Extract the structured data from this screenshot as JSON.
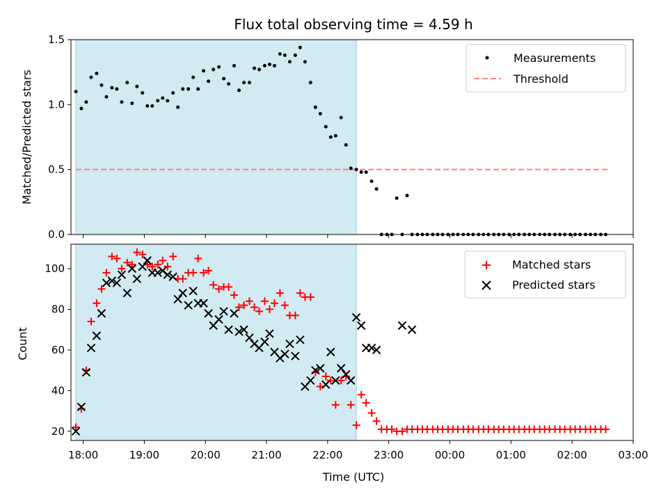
{
  "chart_data": [
    {
      "type": "scatter",
      "title": "Flux total observing time = 4.59 h",
      "xlabel": "",
      "ylabel": "Matched/Predicted stars",
      "ylim": [
        0,
        1.5
      ],
      "yticks": [
        "0.0",
        "0.5",
        "1.0",
        "1.5"
      ],
      "xlim": [
        17.8,
        27.0
      ],
      "shaded_region": {
        "x_start": 17.88,
        "x_end": 22.47,
        "color": "#add8e6"
      },
      "legend": "top-right",
      "threshold": {
        "name": "Threshold",
        "value": 0.5,
        "x_start": 17.88,
        "x_end": 26.6,
        "color": "#ff7f7f"
      },
      "series": [
        {
          "name": "Measurements",
          "color": "#000000",
          "x": [
            17.88,
            17.97,
            18.05,
            18.13,
            18.22,
            18.3,
            18.38,
            18.47,
            18.55,
            18.63,
            18.72,
            18.8,
            18.88,
            18.97,
            19.05,
            19.13,
            19.22,
            19.3,
            19.38,
            19.47,
            19.55,
            19.63,
            19.72,
            19.8,
            19.88,
            19.97,
            20.05,
            20.13,
            20.22,
            20.3,
            20.38,
            20.47,
            20.55,
            20.63,
            20.72,
            20.8,
            20.88,
            20.97,
            21.05,
            21.13,
            21.22,
            21.3,
            21.38,
            21.47,
            21.55,
            21.63,
            21.72,
            21.8,
            21.88,
            21.97,
            22.05,
            22.13,
            22.22,
            22.3,
            22.38,
            22.47,
            22.55,
            22.63,
            22.72,
            22.8,
            22.88,
            22.97,
            23.05,
            23.13,
            23.22,
            23.3,
            23.38,
            23.47,
            23.55,
            23.63,
            23.72,
            23.8,
            23.88,
            23.97,
            24.05,
            24.13,
            24.22,
            24.3,
            24.38,
            24.47,
            24.55,
            24.63,
            24.72,
            24.8,
            24.88,
            24.97,
            25.05,
            25.13,
            25.22,
            25.3,
            25.38,
            25.47,
            25.55,
            25.63,
            25.72,
            25.8,
            25.88,
            25.97,
            26.05,
            26.13,
            26.22,
            26.3,
            26.38,
            26.47,
            26.55
          ],
          "y": [
            1.1,
            0.97,
            1.02,
            1.21,
            1.24,
            1.15,
            1.06,
            1.13,
            1.12,
            1.02,
            1.17,
            1.01,
            1.14,
            1.09,
            0.99,
            0.99,
            1.03,
            1.05,
            1.03,
            1.09,
            0.98,
            1.12,
            1.12,
            1.21,
            1.12,
            1.26,
            1.18,
            1.27,
            1.29,
            1.2,
            1.16,
            1.3,
            1.11,
            1.17,
            1.17,
            1.28,
            1.27,
            1.3,
            1.31,
            1.3,
            1.39,
            1.38,
            1.33,
            1.38,
            1.44,
            1.33,
            1.17,
            0.98,
            0.93,
            0.83,
            0.75,
            0.76,
            0.9,
            0.69,
            0.51,
            0.5,
            0.48,
            0.48,
            0.41,
            0.35,
            0.0,
            0.0,
            0.0,
            0.28,
            0.0,
            0.3,
            0.0,
            0.0,
            0.0,
            0.0,
            0.0,
            0.0,
            0.0,
            0.0,
            0.0,
            0.0,
            0.0,
            0.0,
            0.0,
            0.0,
            0.0,
            0.0,
            0.0,
            0.0,
            0.0,
            0.0,
            0.0,
            0.0,
            0.0,
            0.0,
            0.0,
            0.0,
            0.0,
            0.0,
            0.0,
            0.0,
            0.0,
            0.0,
            0.0,
            0.0,
            0.0,
            0.0,
            0.0,
            0.0,
            0.0
          ]
        }
      ]
    },
    {
      "type": "scatter",
      "title": "",
      "xlabel": "Time (UTC)",
      "ylabel": "Count",
      "ylim": [
        15.5,
        112
      ],
      "yticks": [
        "20",
        "40",
        "60",
        "80",
        "100"
      ],
      "xlim": [
        17.8,
        27.0
      ],
      "xticks": [
        {
          "value": 18,
          "label": "18:00"
        },
        {
          "value": 19,
          "label": "19:00"
        },
        {
          "value": 20,
          "label": "20:00"
        },
        {
          "value": 21,
          "label": "21:00"
        },
        {
          "value": 22,
          "label": "22:00"
        },
        {
          "value": 23,
          "label": "23:00"
        },
        {
          "value": 24,
          "label": "00:00"
        },
        {
          "value": 25,
          "label": "01:00"
        },
        {
          "value": 26,
          "label": "02:00"
        },
        {
          "value": 27,
          "label": "03:00"
        }
      ],
      "shaded_region": {
        "x_start": 17.88,
        "x_end": 22.47,
        "color": "#add8e6"
      },
      "legend": "top-right",
      "series": [
        {
          "name": "Matched stars",
          "color": "#ff0000",
          "marker": "plus",
          "x": [
            17.88,
            17.97,
            18.05,
            18.13,
            18.22,
            18.3,
            18.38,
            18.47,
            18.55,
            18.63,
            18.72,
            18.8,
            18.88,
            18.97,
            19.05,
            19.13,
            19.22,
            19.3,
            19.38,
            19.47,
            19.55,
            19.63,
            19.72,
            19.8,
            19.88,
            19.97,
            20.05,
            20.13,
            20.22,
            20.3,
            20.38,
            20.47,
            20.55,
            20.63,
            20.72,
            20.8,
            20.88,
            20.97,
            21.05,
            21.13,
            21.22,
            21.3,
            21.38,
            21.47,
            21.55,
            21.63,
            21.72,
            21.8,
            21.88,
            21.97,
            22.05,
            22.13,
            22.22,
            22.3,
            22.38,
            22.47,
            22.55,
            22.63,
            22.72,
            22.8,
            22.88,
            22.97,
            23.05,
            23.13,
            23.22,
            23.3,
            23.38,
            23.47,
            23.55,
            23.63,
            23.72,
            23.8,
            23.88,
            23.97,
            24.05,
            24.13,
            24.22,
            24.3,
            24.38,
            24.47,
            24.55,
            24.63,
            24.72,
            24.8,
            24.88,
            24.97,
            25.05,
            25.13,
            25.22,
            25.3,
            25.38,
            25.47,
            25.55,
            25.63,
            25.72,
            25.8,
            25.88,
            25.97,
            26.05,
            26.13,
            26.22,
            26.3,
            26.38,
            26.47,
            26.55
          ],
          "y": [
            22,
            31,
            50,
            74,
            83,
            90,
            98,
            106,
            105,
            100,
            103,
            102,
            108,
            107,
            102,
            101,
            102,
            104,
            101,
            106,
            95,
            95,
            98,
            98,
            105,
            98,
            99,
            92,
            90,
            91,
            91,
            87,
            81,
            82,
            84,
            81,
            79,
            84,
            80,
            83,
            88,
            82,
            77,
            77,
            88,
            86,
            86,
            49,
            42,
            47,
            45,
            33,
            45,
            47,
            33,
            23,
            38,
            34,
            29,
            25,
            21,
            21,
            21,
            20,
            20,
            21,
            21,
            21,
            21,
            21,
            21,
            21,
            21,
            21,
            21,
            21,
            21,
            21,
            21,
            21,
            21,
            21,
            21,
            21,
            21,
            21,
            21,
            21,
            21,
            21,
            21,
            21,
            21,
            21,
            21,
            21,
            21,
            21,
            21,
            21,
            21,
            21,
            21,
            21,
            21
          ]
        },
        {
          "name": "Predicted stars",
          "color": "#000000",
          "marker": "x",
          "x": [
            17.88,
            17.97,
            18.05,
            18.13,
            18.22,
            18.3,
            18.38,
            18.47,
            18.55,
            18.63,
            18.72,
            18.8,
            18.88,
            18.97,
            19.05,
            19.13,
            19.22,
            19.3,
            19.38,
            19.47,
            19.55,
            19.63,
            19.72,
            19.8,
            19.88,
            19.97,
            20.05,
            20.13,
            20.22,
            20.3,
            20.38,
            20.47,
            20.55,
            20.63,
            20.72,
            20.8,
            20.88,
            20.97,
            21.05,
            21.13,
            21.22,
            21.3,
            21.38,
            21.47,
            21.55,
            21.63,
            21.72,
            21.8,
            21.88,
            21.97,
            22.05,
            22.13,
            22.22,
            22.3,
            22.38,
            22.47,
            22.55,
            22.63,
            22.72,
            22.8,
            23.22,
            23.38
          ],
          "y": [
            20,
            32,
            49,
            61,
            67,
            78,
            93,
            94,
            93,
            97,
            88,
            100,
            95,
            101,
            104,
            98,
            98,
            99,
            97,
            96,
            85,
            88,
            82,
            89,
            83,
            83,
            78,
            72,
            75,
            79,
            70,
            78,
            69,
            70,
            66,
            63,
            61,
            64,
            68,
            59,
            56,
            58,
            63,
            57,
            65,
            42,
            45,
            50,
            51,
            43,
            59,
            45,
            51,
            48,
            45,
            76,
            72,
            61,
            61,
            60,
            72,
            70
          ]
        }
      ]
    }
  ]
}
